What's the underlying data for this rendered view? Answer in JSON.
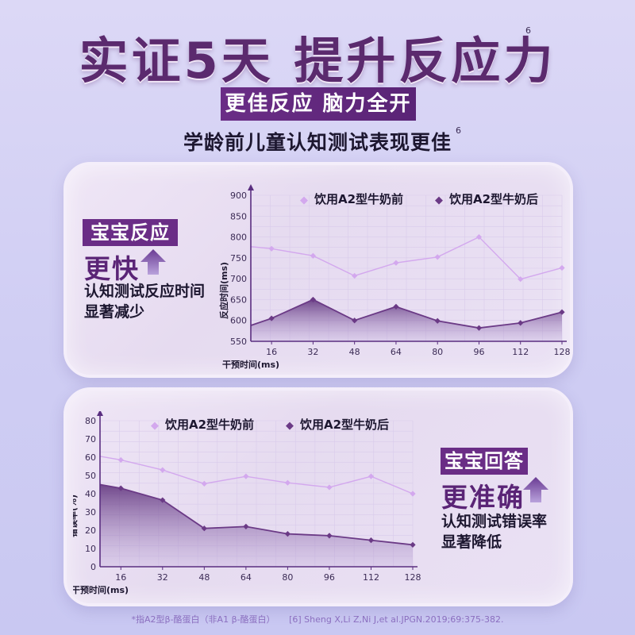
{
  "header": {
    "title": "实证5天 提升反应力",
    "title_ref": "6",
    "ribbon": "更佳反应 脑力全开",
    "subtitle": "学龄前儿童认知测试表现更佳",
    "subtitle_ref": "6"
  },
  "panel1": {
    "tag": "宝宝反应",
    "big": "更快",
    "desc_line1": "认知测试反应时间",
    "desc_line2": "显著减少"
  },
  "panel2": {
    "tag": "宝宝回答",
    "big": "更准确",
    "desc_line1": "认知测试错误率",
    "desc_line2": "显著降低"
  },
  "footer": {
    "note": "*指A2型β-酪蛋白（非A1 β-酪蛋白）",
    "citation": "[6] Sheng X,Li Z,Ni J,et al.JPGN.2019;69:375-382."
  },
  "colors": {
    "before": "#d3a8ee",
    "after": "#6b3a86",
    "accent": "#6a2d86",
    "arrow": "#6a3b93"
  },
  "chart_data": [
    {
      "type": "line",
      "xlabel": "干预时间(ms)",
      "ylabel": "反应时间(ms)",
      "ylim": [
        550,
        900
      ],
      "yticks": [
        550,
        600,
        650,
        700,
        750,
        800,
        850,
        900
      ],
      "x": [
        16,
        32,
        48,
        64,
        80,
        96,
        112,
        128
      ],
      "xlim": [
        8,
        128
      ],
      "x_start": 8,
      "legend_placement": "top",
      "series": [
        {
          "name": "饮用A2型牛奶前",
          "marker": "◆",
          "style": "line",
          "first": 777,
          "values": [
            772,
            755,
            707,
            738,
            752,
            800,
            699,
            726
          ]
        },
        {
          "name": "饮用A2型牛奶后",
          "marker": "◆",
          "style": "area",
          "first": 588,
          "values": [
            605,
            650,
            600,
            633,
            599,
            582,
            594,
            620
          ]
        }
      ]
    },
    {
      "type": "line",
      "xlabel": "干预时间(ms)",
      "ylabel": "错误率(%)",
      "ylim": [
        0,
        80
      ],
      "yticks": [
        0,
        10,
        20,
        30,
        40,
        50,
        60,
        70,
        80
      ],
      "x": [
        16,
        32,
        48,
        64,
        80,
        96,
        112,
        128
      ],
      "xlim": [
        8,
        128
      ],
      "x_start": 8,
      "legend_placement": "top",
      "series": [
        {
          "name": "饮用A2型牛奶前",
          "marker": "◆",
          "style": "line",
          "first": 60.5,
          "values": [
            58.5,
            53,
            45.5,
            49.5,
            46,
            43.5,
            49.5,
            40
          ]
        },
        {
          "name": "饮用A2型牛奶后",
          "marker": "◆",
          "style": "area",
          "first": 45,
          "values": [
            43,
            36.5,
            21,
            22,
            18,
            17,
            14.5,
            12
          ]
        }
      ]
    }
  ]
}
